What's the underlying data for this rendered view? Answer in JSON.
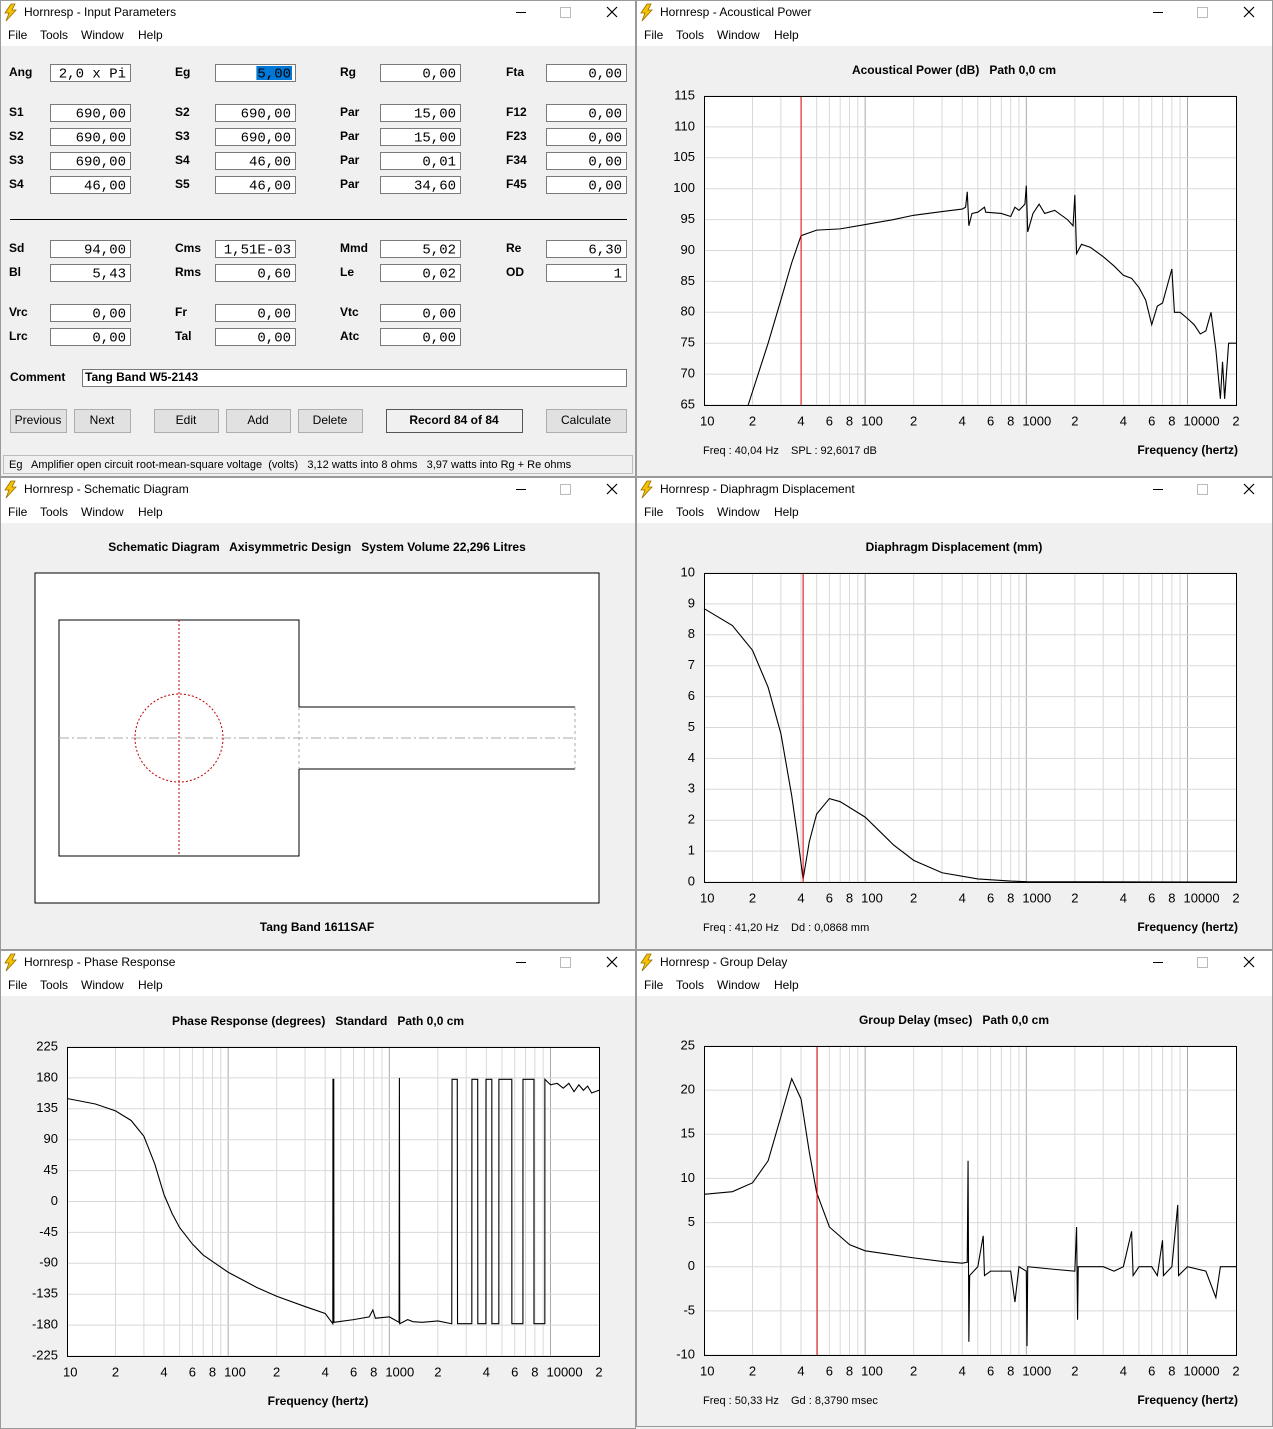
{
  "windows": [
    {
      "title": "Hornresp - Input Parameters",
      "menu": [
        "File",
        "Tools",
        "Window",
        "Help"
      ]
    },
    {
      "title": "Hornresp - Acoustical Power",
      "menu": [
        "File",
        "Tools",
        "Window",
        "Help"
      ]
    },
    {
      "title": "Hornresp - Schematic Diagram",
      "menu": [
        "File",
        "Tools",
        "Window",
        "Help"
      ]
    },
    {
      "title": "Hornresp - Diaphragm Displacement",
      "menu": [
        "File",
        "Tools",
        "Window",
        "Help"
      ]
    },
    {
      "title": "Hornresp - Phase Response",
      "menu": [
        "File",
        "Tools",
        "Window",
        "Help"
      ]
    },
    {
      "title": "Hornresp - Group Delay",
      "menu": [
        "File",
        "Tools",
        "Window",
        "Help"
      ]
    }
  ],
  "input_parameters": {
    "rows": [
      [
        {
          "label": "Ang",
          "value": "2,0 x Pi"
        },
        {
          "label": "Eg",
          "value": "5,00",
          "selected": true
        },
        {
          "label": "Rg",
          "value": "0,00"
        },
        {
          "label": "Fta",
          "value": "0,00",
          "disabled": true
        }
      ],
      [
        {
          "label": "S1",
          "value": "690,00"
        },
        {
          "label": "S2",
          "value": "690,00"
        },
        {
          "label": "Par",
          "value": "15,00"
        },
        {
          "label": "F12",
          "value": "0,00",
          "disabled": true
        }
      ],
      [
        {
          "label": "S2",
          "value": "690,00"
        },
        {
          "label": "S3",
          "value": "690,00"
        },
        {
          "label": "Par",
          "value": "15,00"
        },
        {
          "label": "F23",
          "value": "0,00",
          "disabled": true
        }
      ],
      [
        {
          "label": "S3",
          "value": "690,00"
        },
        {
          "label": "S4",
          "value": "46,00"
        },
        {
          "label": "Par",
          "value": "0,01"
        },
        {
          "label": "F34",
          "value": "0,00",
          "disabled": true
        }
      ],
      [
        {
          "label": "S4",
          "value": "46,00"
        },
        {
          "label": "S5",
          "value": "46,00"
        },
        {
          "label": "Par",
          "value": "34,60"
        },
        {
          "label": "F45",
          "value": "0,00",
          "disabled": true
        }
      ],
      [
        {
          "label": "Sd",
          "value": "94,00"
        },
        {
          "label": "Cms",
          "value": "1,51E-03"
        },
        {
          "label": "Mmd",
          "value": "5,02"
        },
        {
          "label": "Re",
          "value": "6,30"
        }
      ],
      [
        {
          "label": "Bl",
          "value": "5,43"
        },
        {
          "label": "Rms",
          "value": "0,60"
        },
        {
          "label": "Le",
          "value": "0,02"
        },
        {
          "label": "OD",
          "value": "1",
          "disabled": true,
          "label_color": "#e00000"
        }
      ],
      [
        {
          "label": "Vrc",
          "value": "0,00"
        },
        {
          "label": "Fr",
          "value": "0,00"
        },
        {
          "label": "Vtc",
          "value": "0,00"
        }
      ],
      [
        {
          "label": "Lrc",
          "value": "0,00"
        },
        {
          "label": "Tal",
          "value": "0,00"
        },
        {
          "label": "Atc",
          "value": "0,00"
        }
      ]
    ],
    "comment_label": "Comment",
    "comment": "Tang Band W5-2143",
    "buttons": [
      {
        "label": "Previous"
      },
      {
        "label": "Next",
        "disabled": true
      },
      {
        "label": "Edit",
        "disabled": true
      },
      {
        "label": "Add"
      },
      {
        "label": "Delete"
      }
    ],
    "record": "Record 84 of 84",
    "calculate": "Calculate",
    "status": "Eg   Amplifier open circuit root-mean-square voltage  (volts)   3,12 watts into 8 ohms   3,97 watts into Rg + Re ohms"
  },
  "schematic": {
    "title": "Schematic Diagram   Axisymmetric Design   System Volume 22,296 Litres",
    "footer": "Tang Band 1611SAF"
  },
  "frequency_axis": {
    "xlim": [
      10,
      20000
    ],
    "xscale": "log",
    "xticks": [
      10,
      {
        "value": 20,
        "label": "2"
      },
      {
        "value": 40,
        "label": "4"
      },
      {
        "value": 60,
        "label": "6"
      },
      {
        "value": 80,
        "label": "8"
      },
      100,
      {
        "value": 200,
        "label": "2"
      },
      {
        "value": 400,
        "label": "4"
      },
      {
        "value": 600,
        "label": "6"
      },
      {
        "value": 800,
        "label": "8"
      },
      1000,
      {
        "value": 2000,
        "label": "2"
      },
      {
        "value": 4000,
        "label": "4"
      },
      {
        "value": 6000,
        "label": "6"
      },
      {
        "value": 8000,
        "label": "8"
      },
      10000,
      {
        "value": 20000,
        "label": "2"
      }
    ],
    "xgrid": [
      20,
      30,
      40,
      50,
      60,
      70,
      80,
      90,
      100,
      200,
      300,
      400,
      500,
      600,
      700,
      800,
      900,
      1000,
      2000,
      3000,
      4000,
      5000,
      6000,
      7000,
      8000,
      9000,
      10000
    ]
  },
  "chart_data": [
    {
      "type": "line",
      "title": "Acoustical Power (dB)   Path 0,0 cm",
      "xlabel": "Frequency (hertz)",
      "color": "#000000",
      "grid": true,
      "ylim": [
        65,
        115
      ],
      "yticks": [
        65,
        70,
        75,
        80,
        85,
        90,
        95,
        100,
        105,
        110,
        115
      ],
      "x": [
        18.8,
        25,
        30,
        35,
        40,
        50,
        70,
        100,
        150,
        200,
        300,
        400,
        420,
        430,
        440,
        460,
        500,
        550,
        560,
        700,
        800,
        850,
        900,
        980,
        1000,
        1020,
        1100,
        1200,
        1300,
        1500,
        1800,
        1950,
        2000,
        2050,
        2200,
        2500,
        3000,
        3500,
        4000,
        4500,
        5000,
        5500,
        6000,
        6500,
        7000,
        8000,
        8300,
        9000,
        10000,
        11000,
        12000,
        13000,
        14000,
        15000,
        16000,
        16500,
        17000,
        18000,
        20000
      ],
      "values": [
        65,
        75,
        82,
        88,
        92.4,
        93.3,
        93.5,
        94.2,
        95,
        95.7,
        96.3,
        96.7,
        97,
        99.5,
        94,
        96,
        96.2,
        97,
        96.2,
        96,
        95.5,
        97,
        96.5,
        97.5,
        100.5,
        93,
        96,
        97.5,
        96,
        96.5,
        95,
        94,
        99,
        89.5,
        91,
        90.5,
        89,
        87.5,
        86,
        85.5,
        84,
        82,
        78,
        81,
        81.5,
        87,
        80,
        80,
        79,
        78,
        76.5,
        77,
        80,
        74,
        66,
        72,
        66,
        75,
        75
      ],
      "cursor": {
        "x": 40.04,
        "color": "#e00000",
        "readout": [
          "Freq : 40,04 Hz",
          "SPL : 92,6017 dB"
        ]
      }
    },
    {
      "type": "line",
      "title": "Diaphragm Displacement (mm)",
      "xlabel": "Frequency (hertz)",
      "color": "#000000",
      "grid": true,
      "ylim": [
        0,
        10
      ],
      "yticks": [
        0,
        1,
        2,
        3,
        4,
        5,
        6,
        7,
        8,
        9,
        10
      ],
      "x": [
        10,
        15,
        20,
        25,
        30,
        35,
        38,
        41.2,
        45,
        50,
        60,
        70,
        100,
        150,
        200,
        300,
        500,
        800,
        1000,
        20000
      ],
      "values": [
        8.85,
        8.3,
        7.5,
        6.3,
        4.8,
        2.8,
        1.5,
        0.09,
        1.3,
        2.2,
        2.7,
        2.6,
        2.1,
        1.2,
        0.7,
        0.3,
        0.1,
        0.03,
        0.01,
        0
      ],
      "cursor": {
        "x": 41.2,
        "color": "#e00000",
        "readout": [
          "Freq : 41,20 Hz",
          "Dd : 0,0868 mm"
        ]
      }
    },
    {
      "type": "line",
      "title": "Phase Response (degrees)   Standard   Path 0,0 cm",
      "xlabel": "Frequency (hertz)",
      "color": "#000000",
      "grid": true,
      "ylim": [
        -225,
        225
      ],
      "yticks": [
        -225,
        -180,
        -135,
        -90,
        -45,
        0,
        45,
        90,
        135,
        180,
        225
      ],
      "x": [
        10,
        15,
        20,
        25,
        30,
        35,
        40,
        45,
        50,
        60,
        70,
        100,
        150,
        200,
        300,
        400,
        446,
        447,
        452,
        453,
        600,
        750,
        790,
        820,
        1000,
        1150,
        1155,
        1160,
        1300,
        1400,
        1600,
        2000,
        2440,
        2450,
        2640,
        2650,
        3250,
        3255,
        3535,
        3540,
        3975,
        3980,
        4325,
        4330,
        4780,
        4786,
        5755,
        5760,
        6745,
        6750,
        7895,
        7900,
        9225,
        9230,
        10000,
        11000,
        12000,
        13000,
        14000,
        15000,
        16000,
        17000,
        18000,
        20000
      ],
      "values": [
        150,
        142,
        132,
        118,
        95,
        55,
        10,
        -18,
        -38,
        -62,
        -78,
        -103,
        -125,
        -138,
        -153,
        -163,
        -178,
        178,
        178,
        -176,
        -172,
        -168,
        -158,
        -170,
        -168,
        -176,
        180,
        -178,
        -172,
        -175,
        -176,
        -174,
        -178,
        178,
        178,
        -178,
        -178,
        178,
        178,
        -178,
        -178,
        178,
        178,
        -178,
        -178,
        178,
        178,
        -178,
        -178,
        178,
        178,
        -178,
        -178,
        178,
        170,
        172,
        165,
        172,
        160,
        170,
        162,
        168,
        158,
        162
      ]
    },
    {
      "type": "line",
      "title": "Group Delay (msec)   Path 0,0 cm",
      "xlabel": "Frequency (hertz)",
      "color": "#000000",
      "grid": true,
      "ylim": [
        -10,
        25
      ],
      "yticks": [
        -10,
        -5,
        0,
        5,
        10,
        15,
        20,
        25
      ],
      "x": [
        10,
        15,
        20,
        25,
        30,
        35,
        40,
        45,
        50,
        60,
        80,
        100,
        200,
        300,
        400,
        430,
        435,
        440,
        445,
        500,
        540,
        550,
        600,
        800,
        850,
        900,
        1000,
        1010,
        1020,
        1500,
        2000,
        2050,
        2080,
        2100,
        3000,
        3500,
        4000,
        4500,
        4600,
        5000,
        6000,
        6500,
        7000,
        7100,
        8000,
        8700,
        8800,
        10000,
        13000,
        15000,
        16000,
        20000
      ],
      "values": [
        8.2,
        8.5,
        9.5,
        12,
        17,
        21.3,
        19,
        13,
        8.4,
        4.5,
        2.5,
        1.8,
        1,
        0.6,
        0.4,
        0.5,
        12,
        -8.5,
        -1,
        0,
        3.5,
        -1,
        -0.5,
        -0.5,
        -4,
        0,
        -0.5,
        -9,
        0,
        -0.3,
        -0.5,
        4.5,
        -6,
        0,
        0,
        -0.5,
        0,
        4,
        -1,
        0,
        0,
        -1,
        3,
        -1,
        0,
        7,
        -1,
        0,
        -0.5,
        -3.5,
        0,
        0
      ],
      "cursor": {
        "x": 50.33,
        "color": "#e00000",
        "readout": [
          "Freq : 50,33 Hz",
          "Gd : 8,3790 msec"
        ]
      }
    }
  ]
}
